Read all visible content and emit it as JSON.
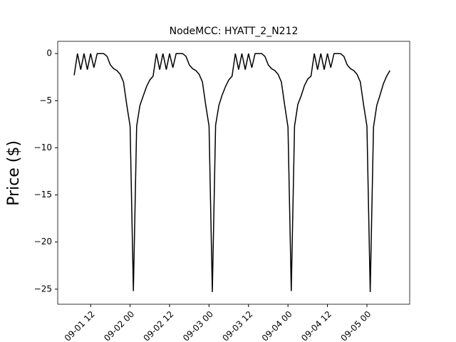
{
  "chart_data": {
    "type": "line",
    "title": "NodeMCC: HYATT_2_N212",
    "y_label": "Price ($)",
    "x": [
      "09-01 07",
      "09-01 08",
      "09-01 09",
      "09-01 10",
      "09-01 11",
      "09-01 12",
      "09-01 13",
      "09-01 14",
      "09-01 15",
      "09-01 16",
      "09-01 17",
      "09-01 18",
      "09-01 19",
      "09-01 20",
      "09-01 21",
      "09-01 22",
      "09-01 23",
      "09-02 00",
      "09-02 01",
      "09-02 02",
      "09-02 03",
      "09-02 04",
      "09-02 05",
      "09-02 06",
      "09-02 07",
      "09-02 08",
      "09-02 09",
      "09-02 10",
      "09-02 11",
      "09-02 12",
      "09-02 13",
      "09-02 14",
      "09-02 15",
      "09-02 16",
      "09-02 17",
      "09-02 18",
      "09-02 19",
      "09-02 20",
      "09-02 21",
      "09-02 22",
      "09-02 23",
      "09-03 00",
      "09-03 01",
      "09-03 02",
      "09-03 03",
      "09-03 04",
      "09-03 05",
      "09-03 06",
      "09-03 07",
      "09-03 08",
      "09-03 09",
      "09-03 10",
      "09-03 11",
      "09-03 12",
      "09-03 13",
      "09-03 14",
      "09-03 15",
      "09-03 16",
      "09-03 17",
      "09-03 18",
      "09-03 19",
      "09-03 20",
      "09-03 21",
      "09-03 22",
      "09-03 23",
      "09-04 00",
      "09-04 01",
      "09-04 02",
      "09-04 03",
      "09-04 04",
      "09-04 05",
      "09-04 06",
      "09-04 07",
      "09-04 08",
      "09-04 09",
      "09-04 10",
      "09-04 11",
      "09-04 12",
      "09-04 13",
      "09-04 14",
      "09-04 15",
      "09-04 16",
      "09-04 17",
      "09-04 18",
      "09-04 19",
      "09-04 20",
      "09-04 21",
      "09-04 22",
      "09-04 23",
      "09-05 00",
      "09-05 01",
      "09-05 02",
      "09-05 03",
      "09-05 04",
      "09-05 05",
      "09-05 06",
      "09-05 07"
    ],
    "series": [
      {
        "color": "#000000",
        "values": [
          -2.3,
          0,
          -1.7,
          0,
          -1.7,
          0,
          -1.5,
          0,
          0,
          0,
          -0.3,
          -1.2,
          -1.6,
          -1.8,
          -2.2,
          -3.0,
          -5.5,
          -7.7,
          -25.2,
          -7.7,
          -5.5,
          -4.5,
          -3.5,
          -2.8,
          -2.4,
          0,
          -1.7,
          0,
          -1.7,
          0,
          -1.5,
          0,
          0,
          0,
          -0.3,
          -1.2,
          -1.6,
          -1.8,
          -2.2,
          -3.0,
          -5.5,
          -7.7,
          -25.3,
          -7.6,
          -5.5,
          -4.4,
          -3.5,
          -2.8,
          -2.4,
          0,
          -1.7,
          0,
          -1.7,
          0,
          -1.5,
          0,
          0,
          0,
          -0.3,
          -1.2,
          -1.6,
          -1.8,
          -2.2,
          -3.0,
          -5.5,
          -7.8,
          -25.2,
          -7.7,
          -5.4,
          -4.5,
          -3.4,
          -2.7,
          -2.4,
          0,
          -1.7,
          0,
          -1.7,
          0,
          -1.5,
          0,
          0,
          0,
          -0.3,
          -1.2,
          -1.6,
          -1.8,
          -2.2,
          -3.0,
          -5.5,
          -7.7,
          -25.3,
          -7.8,
          -5.5,
          -4.4,
          -3.2,
          -2.4,
          -1.8
        ]
      }
    ],
    "xlim": [
      "09-01 02",
      "09-05 13"
    ],
    "xticks": [
      "09-01 12",
      "09-02 00",
      "09-02 12",
      "09-03 00",
      "09-03 12",
      "09-04 00",
      "09-04 12",
      "09-05 00"
    ],
    "ylim": [
      -26.6,
      1.3
    ],
    "yticks": [
      {
        "value": -25,
        "label": "−25"
      },
      {
        "value": -20,
        "label": "−20"
      },
      {
        "value": -15,
        "label": "−15"
      },
      {
        "value": -10,
        "label": "−10"
      },
      {
        "value": -5,
        "label": "−5"
      },
      0
    ]
  }
}
